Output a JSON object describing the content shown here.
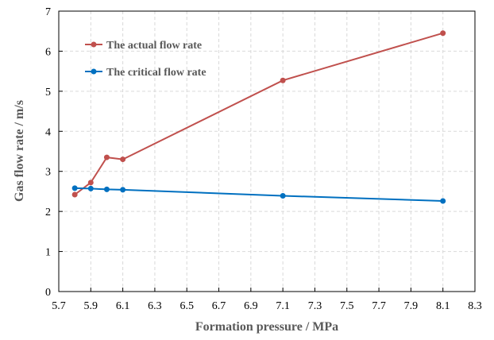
{
  "chart_data": {
    "type": "line",
    "xlabel": "Formation pressure / MPa",
    "ylabel": "Gas flow rate / m/s",
    "xlim": [
      5.7,
      8.3
    ],
    "ylim": [
      0,
      7
    ],
    "xticks": [
      "5.7",
      "5.9",
      "6.1",
      "6.3",
      "6.5",
      "6.7",
      "6.9",
      "7.1",
      "7.3",
      "7.5",
      "7.7",
      "7.9",
      "8.1",
      "8.3"
    ],
    "yticks": [
      "0",
      "1",
      "2",
      "3",
      "4",
      "5",
      "6",
      "7"
    ],
    "grid": true,
    "legend_position": "top-left",
    "series": [
      {
        "name": "The actual flow rate",
        "color": "#c0504d",
        "x": [
          5.8,
          5.9,
          6.0,
          6.1,
          7.1,
          8.1
        ],
        "y": [
          2.42,
          2.72,
          3.35,
          3.3,
          5.27,
          6.45
        ]
      },
      {
        "name": "The critical flow rate",
        "color": "#0070c0",
        "x": [
          5.8,
          5.9,
          6.0,
          6.1,
          7.1,
          8.1
        ],
        "y": [
          2.58,
          2.57,
          2.55,
          2.54,
          2.39,
          2.26
        ]
      }
    ]
  }
}
